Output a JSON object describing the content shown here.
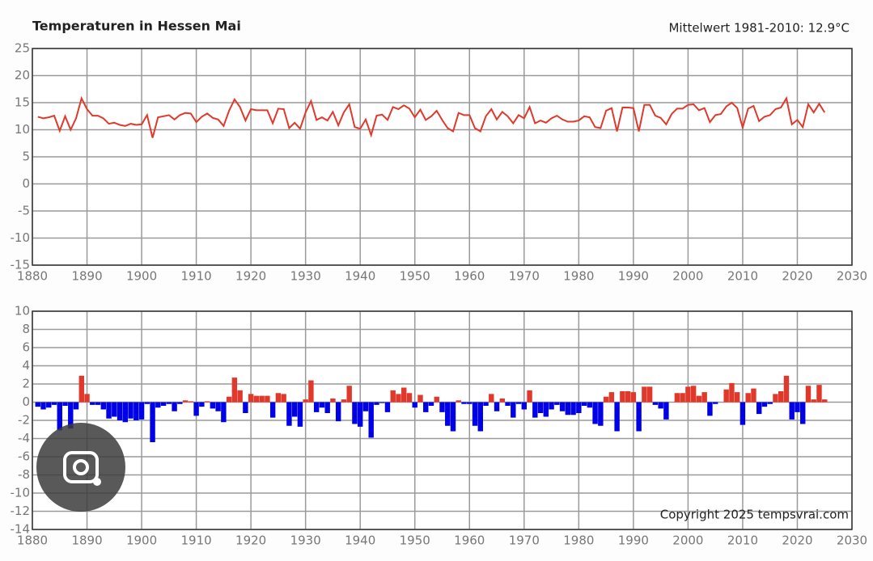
{
  "chart_data": [
    {
      "type": "line",
      "title": "Temperaturen in Hessen Mai",
      "annotation": "Mittelwert 1981-2010: 12.9°C",
      "color": "#e0392c",
      "grid": true,
      "xlim": [
        1880,
        2030
      ],
      "xticks": [
        1880,
        1890,
        1900,
        1910,
        1920,
        1930,
        1940,
        1950,
        1960,
        1970,
        1980,
        1990,
        2000,
        2010,
        2020,
        2030
      ],
      "ylim": [
        -15,
        25
      ],
      "yticks": [
        25,
        20,
        15,
        10,
        5,
        0,
        -5,
        -10,
        -15
      ],
      "x": [
        1881,
        1882,
        1883,
        1884,
        1885,
        1886,
        1887,
        1888,
        1889,
        1890,
        1891,
        1892,
        1893,
        1894,
        1895,
        1896,
        1897,
        1898,
        1899,
        1900,
        1901,
        1902,
        1903,
        1904,
        1905,
        1906,
        1907,
        1908,
        1909,
        1910,
        1911,
        1912,
        1913,
        1914,
        1915,
        1916,
        1917,
        1918,
        1919,
        1920,
        1921,
        1922,
        1923,
        1924,
        1925,
        1926,
        1927,
        1928,
        1929,
        1930,
        1931,
        1932,
        1933,
        1934,
        1935,
        1936,
        1937,
        1938,
        1939,
        1940,
        1941,
        1942,
        1943,
        1944,
        1945,
        1946,
        1947,
        1948,
        1949,
        1950,
        1951,
        1952,
        1953,
        1954,
        1955,
        1956,
        1957,
        1958,
        1959,
        1960,
        1961,
        1962,
        1963,
        1964,
        1965,
        1966,
        1967,
        1968,
        1969,
        1970,
        1971,
        1972,
        1973,
        1974,
        1975,
        1976,
        1977,
        1978,
        1979,
        1980,
        1981,
        1982,
        1983,
        1984,
        1985,
        1986,
        1987,
        1988,
        1989,
        1990,
        1991,
        1992,
        1993,
        1994,
        1995,
        1996,
        1997,
        1998,
        1999,
        2000,
        2001,
        2002,
        2003,
        2004,
        2005,
        2006,
        2007,
        2008,
        2009,
        2010,
        2011,
        2012,
        2013,
        2014,
        2015,
        2016,
        2017,
        2018,
        2019,
        2020,
        2021,
        2022,
        2023,
        2024,
        2025
      ],
      "values": [
        12.4,
        12.1,
        12.3,
        12.6,
        9.8,
        12.5,
        10.0,
        12.1,
        15.8,
        13.8,
        12.6,
        12.6,
        12.1,
        11.1,
        11.3,
        10.9,
        10.7,
        11.1,
        10.9,
        11.0,
        12.7,
        8.5,
        12.3,
        12.5,
        12.7,
        11.9,
        12.7,
        13.1,
        13.0,
        11.4,
        12.4,
        13.0,
        12.2,
        11.9,
        10.7,
        13.5,
        15.6,
        14.2,
        11.7,
        13.8,
        13.6,
        13.6,
        13.6,
        11.2,
        13.9,
        13.8,
        10.3,
        11.3,
        10.2,
        13.2,
        15.3,
        11.8,
        12.3,
        11.7,
        13.3,
        10.8,
        13.2,
        14.7,
        10.5,
        10.2,
        11.9,
        9.0,
        12.6,
        12.8,
        11.8,
        14.2,
        13.8,
        14.5,
        13.9,
        12.3,
        13.7,
        11.8,
        12.5,
        13.5,
        11.8,
        10.3,
        9.7,
        13.1,
        12.7,
        12.7,
        10.3,
        9.7,
        12.5,
        13.8,
        11.9,
        13.3,
        12.5,
        11.2,
        12.7,
        12.1,
        14.2,
        11.2,
        11.7,
        11.3,
        12.1,
        12.6,
        11.9,
        11.5,
        11.5,
        11.7,
        12.5,
        12.3,
        10.5,
        10.3,
        13.5,
        14.0,
        9.7,
        14.1,
        14.1,
        14.0,
        9.7,
        14.6,
        14.6,
        12.6,
        12.2,
        11.0,
        12.9,
        13.9,
        13.9,
        14.6,
        14.7,
        13.6,
        14.0,
        11.4,
        12.7,
        12.9,
        14.3,
        15.0,
        14.0,
        10.4,
        13.9,
        14.4,
        11.6,
        12.4,
        12.7,
        13.8,
        14.1,
        15.8,
        11.0,
        11.8,
        10.5,
        14.7,
        13.2,
        14.8,
        13.2
      ]
    },
    {
      "type": "bar",
      "annotation": "Copyright 2025 tempsvrai.com",
      "positive_color": "#e0392c",
      "negative_color": "#0000e6",
      "grid": true,
      "xlim": [
        1880,
        2030
      ],
      "xticks": [
        1880,
        1890,
        1900,
        1910,
        1920,
        1930,
        1940,
        1950,
        1960,
        1970,
        1980,
        1990,
        2000,
        2010,
        2020,
        2030
      ],
      "ylim": [
        -14,
        10
      ],
      "yticks": [
        10,
        8,
        6,
        4,
        2,
        0,
        -2,
        -4,
        -6,
        -8,
        -10,
        -12,
        -14
      ],
      "x": [
        1881,
        1882,
        1883,
        1884,
        1885,
        1886,
        1887,
        1888,
        1889,
        1890,
        1891,
        1892,
        1893,
        1894,
        1895,
        1896,
        1897,
        1898,
        1899,
        1900,
        1901,
        1902,
        1903,
        1904,
        1905,
        1906,
        1907,
        1908,
        1909,
        1910,
        1911,
        1912,
        1913,
        1914,
        1915,
        1916,
        1917,
        1918,
        1919,
        1920,
        1921,
        1922,
        1923,
        1924,
        1925,
        1926,
        1927,
        1928,
        1929,
        1930,
        1931,
        1932,
        1933,
        1934,
        1935,
        1936,
        1937,
        1938,
        1939,
        1940,
        1941,
        1942,
        1943,
        1944,
        1945,
        1946,
        1947,
        1948,
        1949,
        1950,
        1951,
        1952,
        1953,
        1954,
        1955,
        1956,
        1957,
        1958,
        1959,
        1960,
        1961,
        1962,
        1963,
        1964,
        1965,
        1966,
        1967,
        1968,
        1969,
        1970,
        1971,
        1972,
        1973,
        1974,
        1975,
        1976,
        1977,
        1978,
        1979,
        1980,
        1981,
        1982,
        1983,
        1984,
        1985,
        1986,
        1987,
        1988,
        1989,
        1990,
        1991,
        1992,
        1993,
        1994,
        1995,
        1996,
        1997,
        1998,
        1999,
        2000,
        2001,
        2002,
        2003,
        2004,
        2005,
        2006,
        2007,
        2008,
        2009,
        2010,
        2011,
        2012,
        2013,
        2014,
        2015,
        2016,
        2017,
        2018,
        2019,
        2020,
        2021,
        2022,
        2023,
        2024,
        2025
      ],
      "values": [
        -0.5,
        -0.8,
        -0.6,
        -0.3,
        -3.1,
        -0.4,
        -2.9,
        -0.8,
        2.9,
        0.9,
        -0.3,
        -0.3,
        -0.8,
        -1.8,
        -1.6,
        -2.0,
        -2.2,
        -1.8,
        -2.0,
        -1.9,
        -0.2,
        -4.4,
        -0.6,
        -0.4,
        -0.2,
        -1.0,
        -0.2,
        0.2,
        0.1,
        -1.5,
        -0.5,
        0.1,
        -0.7,
        -1.0,
        -2.2,
        0.6,
        2.7,
        1.3,
        -1.2,
        0.9,
        0.7,
        0.7,
        0.7,
        -1.7,
        1.0,
        0.9,
        -2.6,
        -1.6,
        -2.7,
        0.3,
        2.4,
        -1.1,
        -0.6,
        -1.2,
        0.4,
        -2.1,
        0.3,
        1.8,
        -2.4,
        -2.7,
        -1.0,
        -3.9,
        -0.3,
        -0.1,
        -1.1,
        1.3,
        0.9,
        1.6,
        1.0,
        -0.6,
        0.8,
        -1.1,
        -0.4,
        0.6,
        -1.1,
        -2.6,
        -3.2,
        0.2,
        -0.2,
        -0.2,
        -2.6,
        -3.2,
        -0.4,
        0.9,
        -1.0,
        0.4,
        -0.4,
        -1.7,
        -0.2,
        -0.8,
        1.3,
        -1.7,
        -1.2,
        -1.6,
        -0.8,
        -0.3,
        -1.0,
        -1.4,
        -1.4,
        -1.2,
        -0.4,
        -0.6,
        -2.4,
        -2.6,
        0.6,
        1.1,
        -3.2,
        1.2,
        1.2,
        1.1,
        -3.2,
        1.7,
        1.7,
        -0.3,
        -0.7,
        -1.9,
        0.0,
        1.0,
        1.0,
        1.7,
        1.8,
        0.7,
        1.1,
        -1.5,
        -0.2,
        0.0,
        1.4,
        2.1,
        1.1,
        -2.5,
        1.0,
        1.5,
        -1.3,
        -0.5,
        -0.2,
        0.9,
        1.2,
        2.9,
        -1.9,
        -1.1,
        -2.4,
        1.8,
        0.3,
        1.9,
        0.3
      ]
    }
  ]
}
